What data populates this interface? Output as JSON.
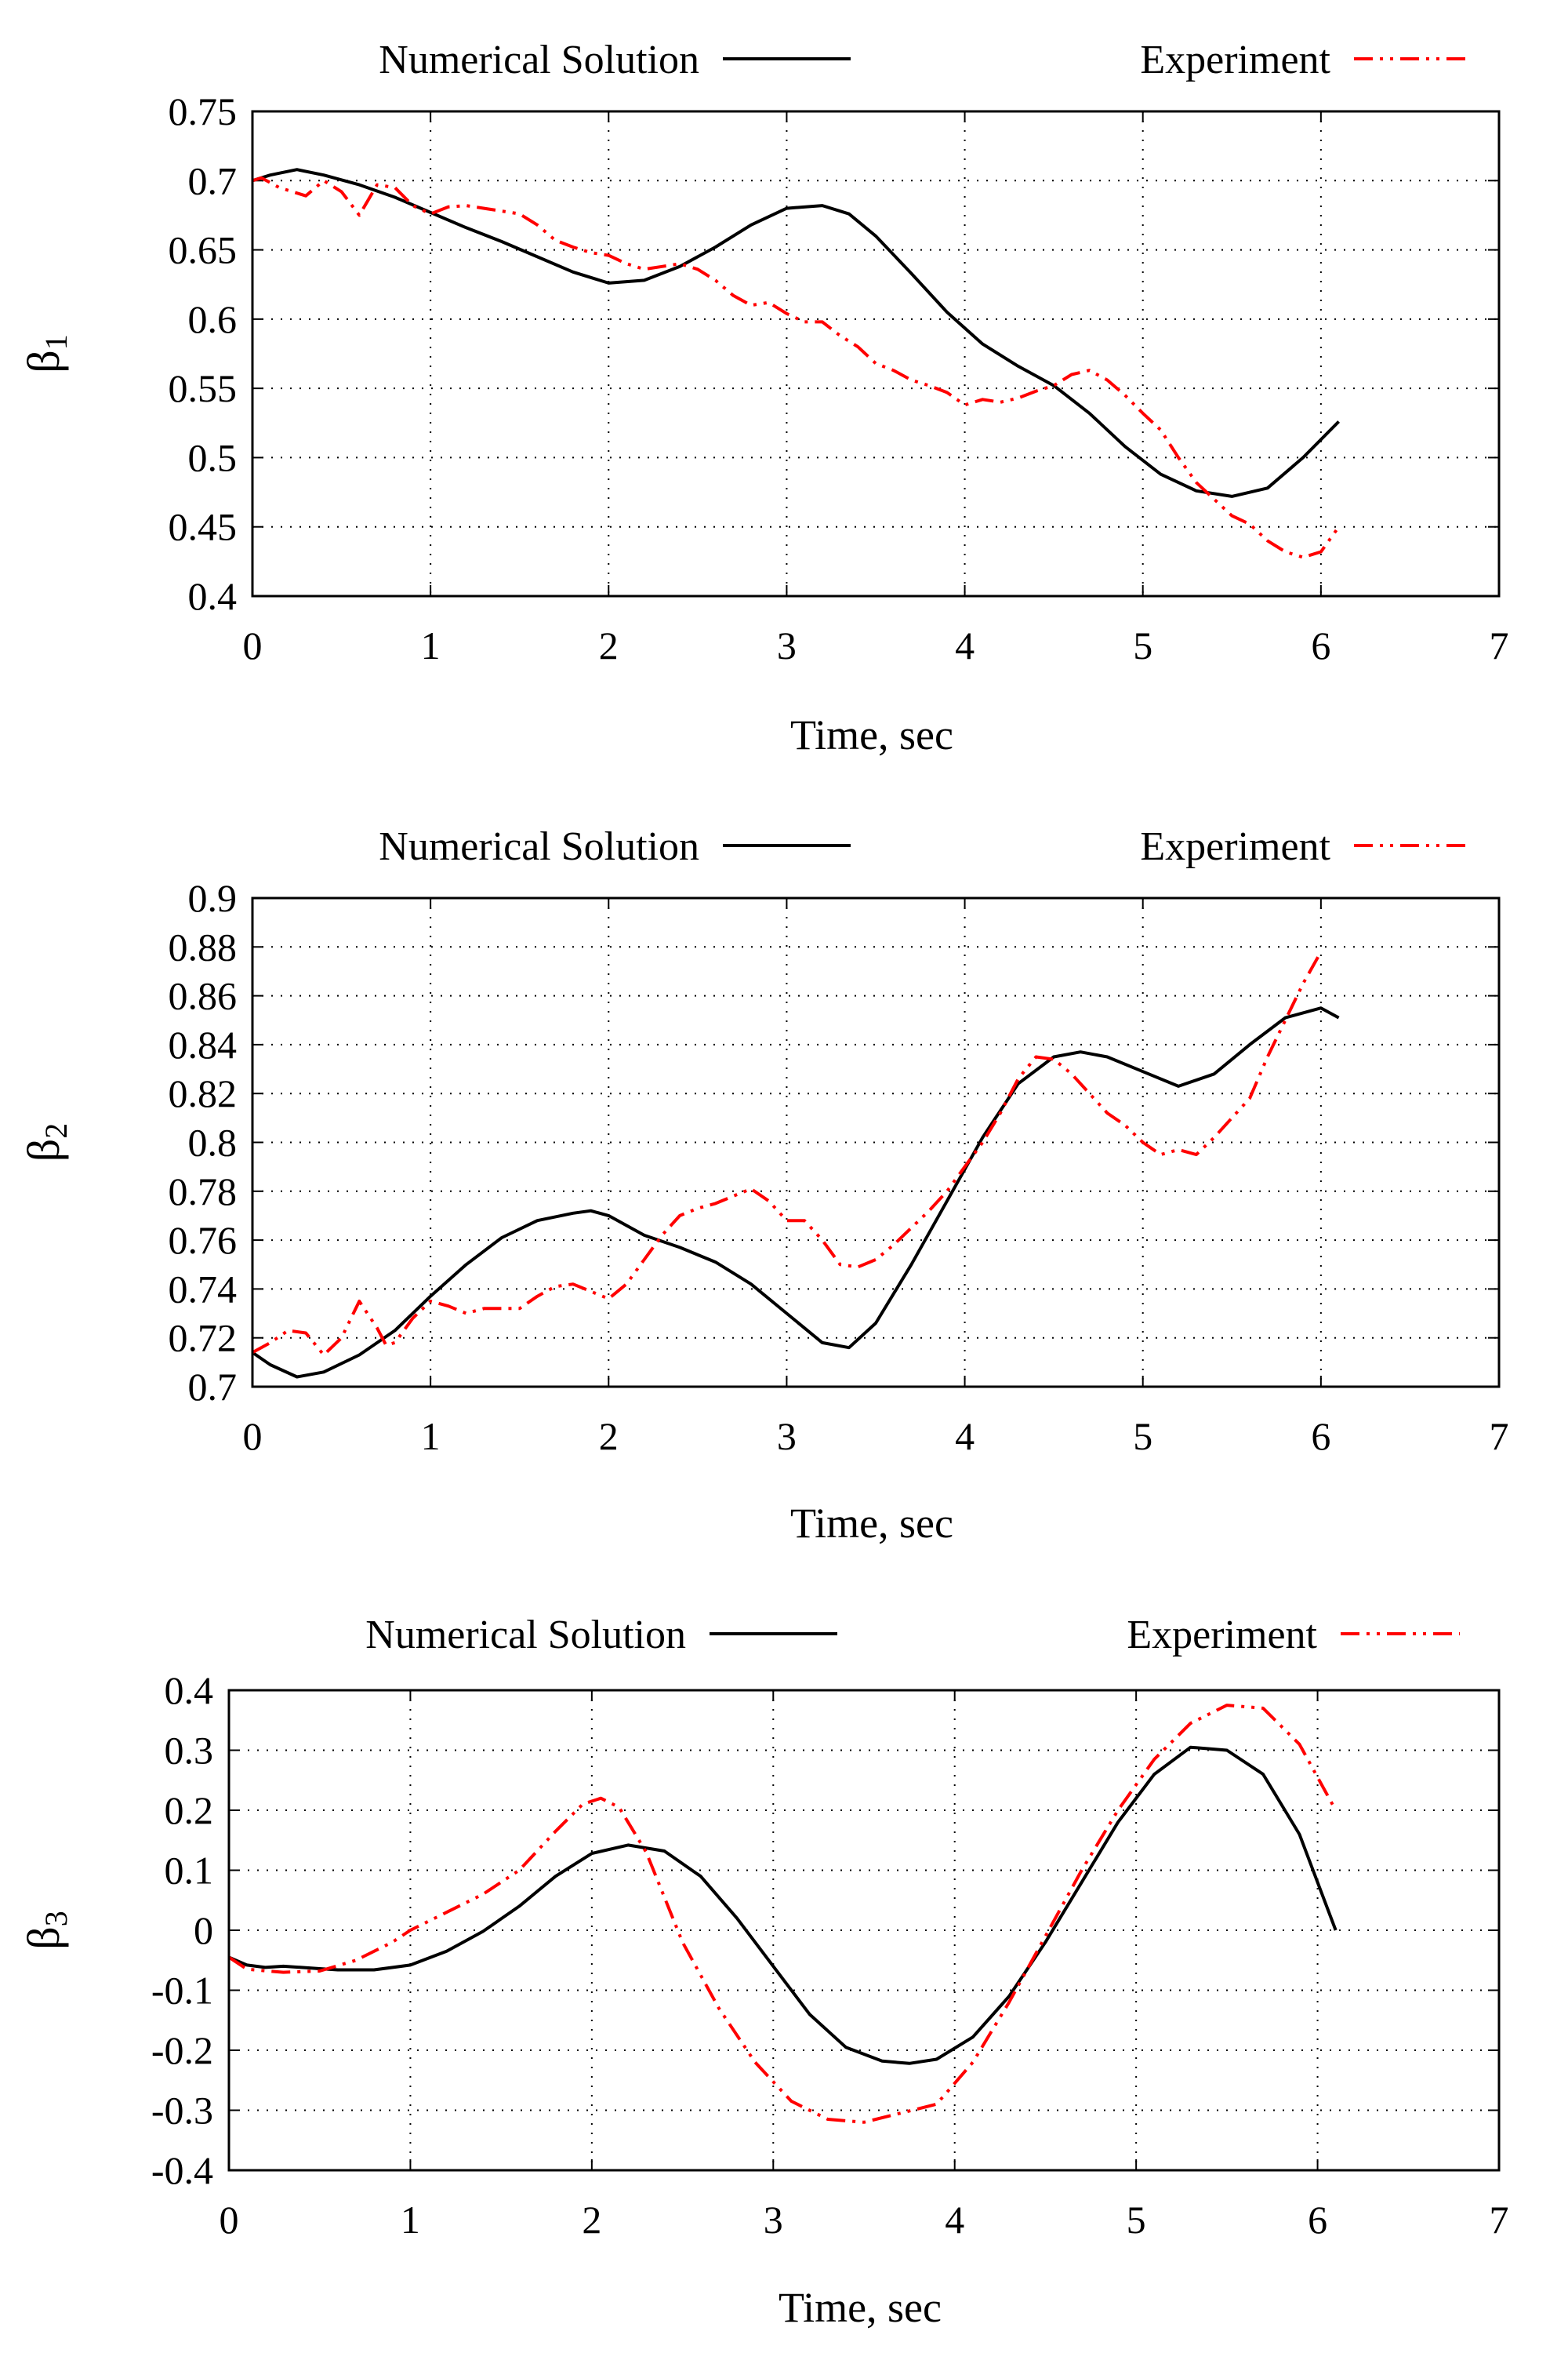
{
  "chart_data": [
    {
      "type": "line",
      "xlabel": "Time, sec",
      "ylabel_symbol": "β",
      "ylabel_subscript": "1",
      "xlim": [
        0,
        7
      ],
      "ylim": [
        0.4,
        0.75
      ],
      "xticks": [
        0,
        1,
        2,
        3,
        4,
        5,
        6,
        7
      ],
      "yticks": [
        0.4,
        0.45,
        0.5,
        0.55,
        0.6,
        0.65,
        0.7,
        0.75
      ],
      "ytick_labels": [
        "0.4",
        "0.45",
        "0.5",
        "0.55",
        "0.6",
        "0.65",
        "0.7",
        "0.75"
      ],
      "grid": true,
      "legend_position": "top",
      "series": [
        {
          "name": "Numerical Solution",
          "color": "#000000",
          "style": "solid",
          "x": [
            0,
            0.1,
            0.25,
            0.4,
            0.6,
            0.8,
            1.0,
            1.2,
            1.4,
            1.6,
            1.8,
            2.0,
            2.2,
            2.4,
            2.6,
            2.8,
            3.0,
            3.2,
            3.35,
            3.5,
            3.7,
            3.9,
            4.1,
            4.3,
            4.5,
            4.7,
            4.9,
            5.1,
            5.3,
            5.5,
            5.7,
            5.9,
            6.1
          ],
          "y": [
            0.7,
            0.704,
            0.708,
            0.704,
            0.697,
            0.688,
            0.677,
            0.666,
            0.656,
            0.645,
            0.634,
            0.626,
            0.628,
            0.638,
            0.652,
            0.668,
            0.68,
            0.682,
            0.676,
            0.66,
            0.633,
            0.605,
            0.582,
            0.566,
            0.552,
            0.532,
            0.508,
            0.488,
            0.476,
            0.472,
            0.478,
            0.5,
            0.526
          ]
        },
        {
          "name": "Experiment",
          "color": "#ff0000",
          "style": "dash-dot-dot",
          "x": [
            0,
            0.05,
            0.15,
            0.3,
            0.4,
            0.5,
            0.6,
            0.7,
            0.8,
            0.9,
            1.0,
            1.1,
            1.2,
            1.3,
            1.4,
            1.5,
            1.6,
            1.7,
            1.8,
            1.9,
            2.0,
            2.1,
            2.2,
            2.3,
            2.4,
            2.5,
            2.6,
            2.7,
            2.8,
            2.9,
            3.0,
            3.1,
            3.2,
            3.3,
            3.4,
            3.5,
            3.6,
            3.7,
            3.8,
            3.9,
            4.0,
            4.1,
            4.2,
            4.3,
            4.4,
            4.5,
            4.6,
            4.7,
            4.8,
            4.9,
            5.0,
            5.1,
            5.2,
            5.3,
            5.4,
            5.5,
            5.6,
            5.7,
            5.8,
            5.9,
            6.0,
            6.1
          ],
          "y": [
            0.7,
            0.702,
            0.695,
            0.689,
            0.7,
            0.692,
            0.675,
            0.697,
            0.695,
            0.682,
            0.676,
            0.681,
            0.682,
            0.68,
            0.678,
            0.676,
            0.668,
            0.657,
            0.652,
            0.648,
            0.646,
            0.64,
            0.636,
            0.638,
            0.64,
            0.636,
            0.628,
            0.617,
            0.61,
            0.612,
            0.604,
            0.598,
            0.598,
            0.588,
            0.58,
            0.568,
            0.563,
            0.556,
            0.552,
            0.547,
            0.538,
            0.542,
            0.54,
            0.543,
            0.548,
            0.552,
            0.56,
            0.563,
            0.556,
            0.545,
            0.532,
            0.52,
            0.5,
            0.482,
            0.47,
            0.458,
            0.452,
            0.44,
            0.432,
            0.428,
            0.432,
            0.45
          ]
        }
      ]
    },
    {
      "type": "line",
      "xlabel": "Time, sec",
      "ylabel_symbol": "β",
      "ylabel_subscript": "2",
      "xlim": [
        0,
        7
      ],
      "ylim": [
        0.7,
        0.9
      ],
      "xticks": [
        0,
        1,
        2,
        3,
        4,
        5,
        6,
        7
      ],
      "yticks": [
        0.7,
        0.72,
        0.74,
        0.76,
        0.78,
        0.8,
        0.82,
        0.84,
        0.86,
        0.88,
        0.9
      ],
      "ytick_labels": [
        "0.7",
        "0.72",
        "0.74",
        "0.76",
        "0.78",
        "0.8",
        "0.82",
        "0.84",
        "0.86",
        "0.88",
        "0.9"
      ],
      "grid": true,
      "legend_position": "top",
      "series": [
        {
          "name": "Numerical Solution",
          "color": "#000000",
          "style": "solid",
          "x": [
            0,
            0.1,
            0.25,
            0.4,
            0.6,
            0.8,
            1.0,
            1.2,
            1.4,
            1.6,
            1.8,
            1.9,
            2.0,
            2.2,
            2.4,
            2.6,
            2.8,
            3.0,
            3.2,
            3.35,
            3.5,
            3.7,
            3.9,
            4.1,
            4.3,
            4.5,
            4.65,
            4.8,
            5.0,
            5.2,
            5.4,
            5.6,
            5.8,
            6.0,
            6.1
          ],
          "y": [
            0.714,
            0.709,
            0.704,
            0.706,
            0.713,
            0.723,
            0.737,
            0.75,
            0.761,
            0.768,
            0.771,
            0.772,
            0.77,
            0.762,
            0.757,
            0.751,
            0.742,
            0.73,
            0.718,
            0.716,
            0.726,
            0.75,
            0.776,
            0.802,
            0.824,
            0.835,
            0.837,
            0.835,
            0.829,
            0.823,
            0.828,
            0.84,
            0.851,
            0.855,
            0.851
          ]
        },
        {
          "name": "Experiment",
          "color": "#ff0000",
          "style": "dash-dot-dot",
          "x": [
            0,
            0.1,
            0.2,
            0.3,
            0.4,
            0.5,
            0.6,
            0.7,
            0.75,
            0.8,
            0.9,
            1.0,
            1.1,
            1.2,
            1.3,
            1.4,
            1.5,
            1.6,
            1.7,
            1.8,
            1.9,
            2.0,
            2.1,
            2.2,
            2.3,
            2.4,
            2.5,
            2.6,
            2.7,
            2.8,
            2.9,
            3.0,
            3.1,
            3.2,
            3.3,
            3.4,
            3.5,
            3.6,
            3.7,
            3.8,
            3.9,
            4.0,
            4.1,
            4.2,
            4.3,
            4.4,
            4.5,
            4.6,
            4.7,
            4.8,
            4.9,
            5.0,
            5.1,
            5.2,
            5.3,
            5.4,
            5.5,
            5.6,
            5.7,
            5.8,
            5.9,
            6.0
          ],
          "y": [
            0.714,
            0.718,
            0.723,
            0.722,
            0.713,
            0.72,
            0.735,
            0.724,
            0.717,
            0.718,
            0.728,
            0.735,
            0.733,
            0.73,
            0.732,
            0.732,
            0.732,
            0.737,
            0.741,
            0.742,
            0.739,
            0.736,
            0.742,
            0.752,
            0.762,
            0.77,
            0.773,
            0.775,
            0.778,
            0.781,
            0.776,
            0.768,
            0.768,
            0.76,
            0.75,
            0.749,
            0.752,
            0.758,
            0.765,
            0.772,
            0.78,
            0.79,
            0.8,
            0.812,
            0.826,
            0.835,
            0.834,
            0.828,
            0.82,
            0.812,
            0.807,
            0.8,
            0.795,
            0.797,
            0.795,
            0.802,
            0.81,
            0.818,
            0.835,
            0.85,
            0.865,
            0.878
          ]
        }
      ]
    },
    {
      "type": "line",
      "xlabel": "Time, sec",
      "ylabel_symbol": "β",
      "ylabel_subscript": "3",
      "xlim": [
        0,
        7
      ],
      "ylim": [
        -0.4,
        0.4
      ],
      "xticks": [
        0,
        1,
        2,
        3,
        4,
        5,
        6,
        7
      ],
      "yticks": [
        -0.4,
        -0.3,
        -0.2,
        -0.1,
        0,
        0.1,
        0.2,
        0.3,
        0.4
      ],
      "ytick_labels": [
        "-0.4",
        "-0.3",
        "-0.2",
        "-0.1",
        "0",
        "0.1",
        "0.2",
        "0.3",
        "0.4"
      ],
      "grid": true,
      "legend_position": "top",
      "series": [
        {
          "name": "Numerical Solution",
          "color": "#000000",
          "style": "solid",
          "x": [
            0,
            0.1,
            0.2,
            0.3,
            0.4,
            0.5,
            0.6,
            0.8,
            1.0,
            1.2,
            1.4,
            1.6,
            1.8,
            2.0,
            2.2,
            2.4,
            2.6,
            2.8,
            3.0,
            3.2,
            3.4,
            3.6,
            3.75,
            3.9,
            4.1,
            4.3,
            4.5,
            4.7,
            4.9,
            5.1,
            5.3,
            5.5,
            5.7,
            5.9,
            6.1
          ],
          "y": [
            -0.045,
            -0.058,
            -0.062,
            -0.06,
            -0.062,
            -0.064,
            -0.066,
            -0.066,
            -0.058,
            -0.035,
            -0.002,
            0.04,
            0.09,
            0.128,
            0.142,
            0.132,
            0.09,
            0.02,
            -0.06,
            -0.14,
            -0.195,
            -0.218,
            -0.222,
            -0.215,
            -0.178,
            -0.11,
            -0.02,
            0.08,
            0.18,
            0.26,
            0.305,
            0.3,
            0.26,
            0.16,
            0.0
          ]
        },
        {
          "name": "Experiment",
          "color": "#ff0000",
          "style": "dash-dot-dot",
          "x": [
            0,
            0.1,
            0.3,
            0.5,
            0.7,
            0.9,
            1.0,
            1.2,
            1.4,
            1.6,
            1.8,
            1.95,
            2.05,
            2.15,
            2.3,
            2.5,
            2.7,
            2.9,
            3.1,
            3.3,
            3.5,
            3.7,
            3.9,
            4.1,
            4.3,
            4.5,
            4.7,
            4.9,
            5.1,
            5.3,
            5.5,
            5.7,
            5.9,
            6.1
          ],
          "y": [
            -0.045,
            -0.065,
            -0.07,
            -0.068,
            -0.05,
            -0.02,
            0.0,
            0.03,
            0.06,
            0.1,
            0.165,
            0.21,
            0.22,
            0.205,
            0.13,
            -0.02,
            -0.13,
            -0.22,
            -0.285,
            -0.315,
            -0.32,
            -0.305,
            -0.29,
            -0.22,
            -0.12,
            -0.01,
            0.1,
            0.2,
            0.285,
            0.345,
            0.375,
            0.37,
            0.31,
            0.2
          ]
        }
      ]
    }
  ]
}
